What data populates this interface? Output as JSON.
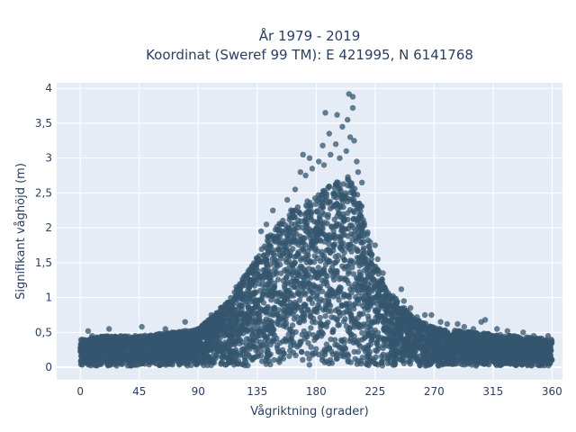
{
  "chart_data": {
    "type": "scatter",
    "title_line1": "År 1979 - 2019",
    "title_line2": "Koordinat (Sweref 99 TM): E 421995, N 6141768",
    "xlabel": "Vågriktning (grader)",
    "ylabel": "Signifikant våghöjd (m)",
    "xlim": [
      -18,
      368
    ],
    "ylim": [
      -0.18,
      4.08
    ],
    "x_ticks": [
      0,
      45,
      90,
      135,
      180,
      225,
      270,
      315,
      360
    ],
    "x_tick_labels": [
      "0",
      "45",
      "90",
      "135",
      "180",
      "225",
      "270",
      "315",
      "360"
    ],
    "y_ticks": [
      0,
      0.5,
      1,
      1.5,
      2,
      2.5,
      3,
      3.5,
      4
    ],
    "y_tick_labels": [
      "0",
      "0,5",
      "1",
      "1,5",
      "2",
      "2,5",
      "3",
      "3,5",
      "4"
    ],
    "grid": true,
    "colors": {
      "marker": "#34566d",
      "plot_bg": "#e5ecf6",
      "grid": "#ffffff",
      "text": "#2a3f5f"
    },
    "envelope": [
      {
        "x": 0,
        "y": 0.4
      },
      {
        "x": 20,
        "y": 0.45
      },
      {
        "x": 45,
        "y": 0.45
      },
      {
        "x": 70,
        "y": 0.5
      },
      {
        "x": 90,
        "y": 0.55
      },
      {
        "x": 105,
        "y": 0.8
      },
      {
        "x": 120,
        "y": 1.15
      },
      {
        "x": 130,
        "y": 1.45
      },
      {
        "x": 140,
        "y": 1.8
      },
      {
        "x": 150,
        "y": 2.05
      },
      {
        "x": 160,
        "y": 2.25
      },
      {
        "x": 170,
        "y": 2.35
      },
      {
        "x": 180,
        "y": 2.45
      },
      {
        "x": 190,
        "y": 2.6
      },
      {
        "x": 200,
        "y": 2.7
      },
      {
        "x": 205,
        "y": 2.75
      },
      {
        "x": 210,
        "y": 2.6
      },
      {
        "x": 215,
        "y": 2.3
      },
      {
        "x": 220,
        "y": 1.9
      },
      {
        "x": 225,
        "y": 1.5
      },
      {
        "x": 232,
        "y": 1.2
      },
      {
        "x": 240,
        "y": 1.0
      },
      {
        "x": 250,
        "y": 0.8
      },
      {
        "x": 260,
        "y": 0.65
      },
      {
        "x": 275,
        "y": 0.55
      },
      {
        "x": 300,
        "y": 0.5
      },
      {
        "x": 330,
        "y": 0.45
      },
      {
        "x": 360,
        "y": 0.4
      }
    ],
    "outliers": [
      {
        "x": 205,
        "y": 3.92
      },
      {
        "x": 208,
        "y": 3.88
      },
      {
        "x": 208,
        "y": 3.72
      },
      {
        "x": 196,
        "y": 3.62
      },
      {
        "x": 187,
        "y": 3.65
      },
      {
        "x": 204,
        "y": 3.55
      },
      {
        "x": 200,
        "y": 3.45
      },
      {
        "x": 190,
        "y": 3.35
      },
      {
        "x": 206,
        "y": 3.3
      },
      {
        "x": 209,
        "y": 3.25
      },
      {
        "x": 185,
        "y": 3.18
      },
      {
        "x": 195,
        "y": 3.2
      },
      {
        "x": 203,
        "y": 3.1
      },
      {
        "x": 191,
        "y": 3.05
      },
      {
        "x": 198,
        "y": 3.0
      },
      {
        "x": 211,
        "y": 2.95
      },
      {
        "x": 182,
        "y": 2.95
      },
      {
        "x": 175,
        "y": 3.0
      },
      {
        "x": 177,
        "y": 2.85
      },
      {
        "x": 170,
        "y": 3.05
      },
      {
        "x": 168,
        "y": 2.8
      },
      {
        "x": 164,
        "y": 2.55
      },
      {
        "x": 158,
        "y": 2.4
      },
      {
        "x": 215,
        "y": 2.65
      },
      {
        "x": 212,
        "y": 2.8
      },
      {
        "x": 172,
        "y": 2.75
      },
      {
        "x": 186,
        "y": 2.9
      },
      {
        "x": 147,
        "y": 2.25
      },
      {
        "x": 142,
        "y": 2.05
      },
      {
        "x": 138,
        "y": 1.95
      },
      {
        "x": 131,
        "y": 1.45
      },
      {
        "x": 125,
        "y": 1.3
      },
      {
        "x": 119,
        "y": 1.15
      },
      {
        "x": 225,
        "y": 1.75
      },
      {
        "x": 227,
        "y": 1.55
      },
      {
        "x": 231,
        "y": 1.35
      },
      {
        "x": 245,
        "y": 1.12
      },
      {
        "x": 247,
        "y": 0.95
      },
      {
        "x": 252,
        "y": 0.85
      },
      {
        "x": 257,
        "y": 0.72
      },
      {
        "x": 263,
        "y": 0.75
      },
      {
        "x": 268,
        "y": 0.75
      },
      {
        "x": 275,
        "y": 0.65
      },
      {
        "x": 280,
        "y": 0.62
      },
      {
        "x": 288,
        "y": 0.62
      },
      {
        "x": 293,
        "y": 0.58
      },
      {
        "x": 300,
        "y": 0.55
      },
      {
        "x": 306,
        "y": 0.65
      },
      {
        "x": 309,
        "y": 0.68
      },
      {
        "x": 318,
        "y": 0.55
      },
      {
        "x": 326,
        "y": 0.52
      },
      {
        "x": 331,
        "y": 0.45
      },
      {
        "x": 338,
        "y": 0.5
      },
      {
        "x": 346,
        "y": 0.45
      },
      {
        "x": 357,
        "y": 0.45
      },
      {
        "x": 6,
        "y": 0.52
      },
      {
        "x": 9,
        "y": 0.45
      },
      {
        "x": 22,
        "y": 0.55
      },
      {
        "x": 31,
        "y": 0.45
      },
      {
        "x": 42,
        "y": 0.45
      },
      {
        "x": 47,
        "y": 0.58
      },
      {
        "x": 55,
        "y": 0.4
      },
      {
        "x": 65,
        "y": 0.55
      },
      {
        "x": 70,
        "y": 0.5
      },
      {
        "x": 75,
        "y": 0.42
      },
      {
        "x": 80,
        "y": 0.65
      },
      {
        "x": 87,
        "y": 0.48
      },
      {
        "x": 93,
        "y": 0.6
      },
      {
        "x": 98,
        "y": 0.55
      },
      {
        "x": 100,
        "y": 0.75
      },
      {
        "x": 108,
        "y": 0.85
      },
      {
        "x": 113,
        "y": 0.9
      },
      {
        "x": 2,
        "y": 0.35
      },
      {
        "x": 14,
        "y": 0.32
      },
      {
        "x": 340,
        "y": 0.38
      },
      {
        "x": 352,
        "y": 0.32
      },
      {
        "x": 58,
        "y": 0.05
      },
      {
        "x": 12,
        "y": 0.05
      }
    ]
  }
}
